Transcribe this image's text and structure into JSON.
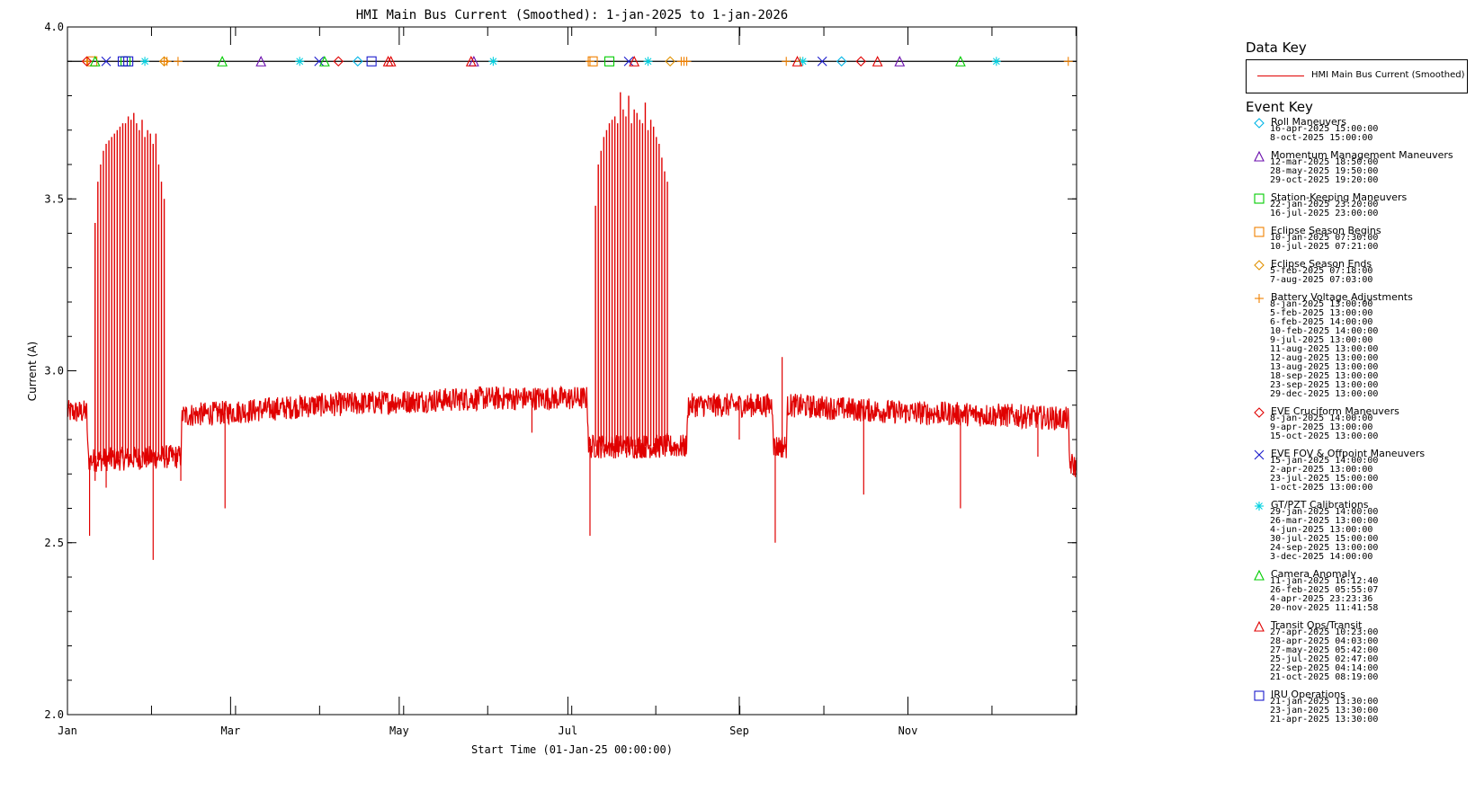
{
  "chart_data": {
    "type": "line",
    "title": "HMI Main Bus Current (Smoothed): 1-jan-2025 to 1-jan-2026",
    "xlabel": "Start Time (01-Jan-25 00:00:00)",
    "ylabel": "Current (A)",
    "ylim": [
      2.0,
      4.0
    ],
    "xlim_days": [
      0,
      365
    ],
    "y_ticks": [
      "2.0",
      "2.5",
      "3.0",
      "3.5",
      "4.0"
    ],
    "y_tick_values": [
      2.0,
      2.5,
      3.0,
      3.5,
      4.0
    ],
    "x_ticks": [
      "Jan",
      "Mar",
      "May",
      "Jul",
      "Sep",
      "Nov"
    ],
    "x_tick_days": [
      0,
      59,
      120,
      181,
      243,
      304
    ],
    "series": [
      {
        "name": "HMI Main Bus Current (Smoothed)",
        "color": "#e00000",
        "noise": 0.035,
        "baseline": [
          [
            0,
            2.88
          ],
          [
            7,
            2.88
          ],
          [
            7.5,
            2.74
          ],
          [
            36,
            2.75
          ],
          [
            41,
            2.75
          ],
          [
            41.5,
            2.87
          ],
          [
            60,
            2.88
          ],
          [
            90,
            2.9
          ],
          [
            120,
            2.91
          ],
          [
            150,
            2.92
          ],
          [
            180,
            2.92
          ],
          [
            188,
            2.92
          ],
          [
            188.5,
            2.78
          ],
          [
            224,
            2.78
          ],
          [
            224.5,
            2.9
          ],
          [
            255,
            2.9
          ],
          [
            255.5,
            2.78
          ],
          [
            260,
            2.78
          ],
          [
            260.5,
            2.9
          ],
          [
            300,
            2.88
          ],
          [
            340,
            2.87
          ],
          [
            362,
            2.86
          ],
          [
            362.5,
            2.73
          ],
          [
            365,
            2.72
          ]
        ],
        "spike_windows": [
          {
            "start": 10,
            "end": 36,
            "spacing": 1.0,
            "peaks": [
              3.43,
              3.55,
              3.6,
              3.64,
              3.66,
              3.67,
              3.68,
              3.69,
              3.7,
              3.71,
              3.72,
              3.72,
              3.74,
              3.73,
              3.75,
              3.72,
              3.7,
              3.73,
              3.68,
              3.7,
              3.69,
              3.66,
              3.69,
              3.6,
              3.55,
              3.5
            ]
          },
          {
            "start": 191,
            "end": 218,
            "spacing": 1.0,
            "peaks": [
              3.48,
              3.6,
              3.64,
              3.68,
              3.7,
              3.72,
              3.73,
              3.74,
              3.72,
              3.81,
              3.76,
              3.74,
              3.8,
              3.72,
              3.76,
              3.75,
              3.73,
              3.72,
              3.78,
              3.7,
              3.73,
              3.71,
              3.68,
              3.66,
              3.62,
              3.58,
              3.55
            ]
          }
        ],
        "dips": [
          [
            8,
            2.52
          ],
          [
            10,
            2.68
          ],
          [
            14,
            2.66
          ],
          [
            31,
            2.45
          ],
          [
            41,
            2.68
          ],
          [
            57,
            2.6
          ],
          [
            168,
            2.82
          ],
          [
            189,
            2.52
          ],
          [
            243,
            2.8
          ],
          [
            256,
            2.5
          ],
          [
            258.5,
            3.04
          ],
          [
            288,
            2.64
          ],
          [
            323,
            2.6
          ],
          [
            351,
            2.75
          ]
        ]
      }
    ],
    "event_track_y": 3.9,
    "events": [
      {
        "name": "Roll Maneuvers",
        "symbol": "diamond",
        "color": "#00b4e6",
        "dates": [
          "16-apr-2025 15:00:00",
          "8-oct-2025 15:00:00"
        ],
        "days": [
          105,
          280
        ]
      },
      {
        "name": "Momentum Management Maneuvers",
        "symbol": "triangle",
        "color": "#6a0dad",
        "dates": [
          "12-mar-2025 18:50:00",
          "28-may-2025 19:50:00",
          "29-oct-2025 19:20:00"
        ],
        "days": [
          70,
          147,
          301
        ]
      },
      {
        "name": "Station-Keeping Maneuvers",
        "symbol": "square",
        "color": "#00cc00",
        "dates": [
          "22-jan-2025 23:20:00",
          "16-jul-2025 23:00:00"
        ],
        "days": [
          21,
          196
        ]
      },
      {
        "name": "Eclipse Season Begins",
        "symbol": "square",
        "color": "#f08000",
        "dates": [
          "10-jan-2025 07:30:00",
          "10-jul-2025 07:21:00"
        ],
        "days": [
          9,
          190
        ]
      },
      {
        "name": "Eclipse Season Ends",
        "symbol": "diamond",
        "color": "#e09000",
        "dates": [
          "5-feb-2025 07:18:00",
          "7-aug-2025 07:03:00"
        ],
        "days": [
          35,
          218
        ]
      },
      {
        "name": "Battery Voltage Adjustments",
        "symbol": "plus",
        "color": "#f08000",
        "dates": [
          "8-jan-2025 13:00:00",
          "5-feb-2025 13:00:00",
          "6-feb-2025 14:00:00",
          "10-feb-2025 14:00:00",
          "9-jul-2025 13:00:00",
          "11-aug-2025 13:00:00",
          "12-aug-2025 13:00:00",
          "13-aug-2025 13:00:00",
          "18-sep-2025 13:00:00",
          "23-sep-2025 13:00:00",
          "29-dec-2025 13:00:00"
        ],
        "days": [
          7,
          35,
          36,
          40,
          189,
          222,
          223,
          224,
          260,
          265,
          362
        ]
      },
      {
        "name": "EVE Cruciform Maneuvers",
        "symbol": "diamond",
        "color": "#e00000",
        "dates": [
          "8-jan-2025 14:00:00",
          "9-apr-2025 13:00:00",
          "15-oct-2025 13:00:00"
        ],
        "days": [
          7,
          98,
          287
        ]
      },
      {
        "name": "EVE FOV & Offpoint Maneuvers",
        "symbol": "x",
        "color": "#1a1acc",
        "dates": [
          "15-jan-2025 14:00:00",
          "2-apr-2025 13:00:00",
          "23-jul-2025 15:00:00",
          "1-oct-2025 13:00:00"
        ],
        "days": [
          14,
          91,
          203,
          273
        ]
      },
      {
        "name": "GT/PZT Calibrations",
        "symbol": "asterisk",
        "color": "#00d0e0",
        "dates": [
          "29-jan-2025 14:00:00",
          "26-mar-2025 13:00:00",
          "4-jun-2025 13:00:00",
          "30-jul-2025 15:00:00",
          "24-sep-2025 13:00:00",
          "3-dec-2025 14:00:00"
        ],
        "days": [
          28,
          84,
          154,
          210,
          266,
          336
        ]
      },
      {
        "name": "Camera Anomaly",
        "symbol": "triangle",
        "color": "#00cc00",
        "dates": [
          "11-jan-2025 16:12:40",
          "26-feb-2025 05:55:07",
          "4-apr-2025 23:23:36",
          "20-nov-2025 11:41:58"
        ],
        "days": [
          10,
          56,
          93,
          323
        ]
      },
      {
        "name": "Transit Ops/Transit",
        "symbol": "triangle",
        "color": "#e00000",
        "dates": [
          "27-apr-2025 10:23:00",
          "28-apr-2025 04:03:00",
          "27-may-2025 05:42:00",
          "25-jul-2025 02:47:00",
          "22-sep-2025 04:14:00",
          "21-oct-2025 08:19:00"
        ],
        "days": [
          116,
          117,
          146,
          205,
          264,
          293
        ]
      },
      {
        "name": "IRU Operations",
        "symbol": "square",
        "color": "#1a1acc",
        "dates": [
          "21-jan-2025 13:30:00",
          "23-jan-2025 13:30:00",
          "21-apr-2025 13:30:00"
        ],
        "days": [
          20,
          22,
          110
        ]
      }
    ]
  },
  "legend": {
    "data_key_title": "Data Key",
    "event_key_title": "Event Key"
  }
}
